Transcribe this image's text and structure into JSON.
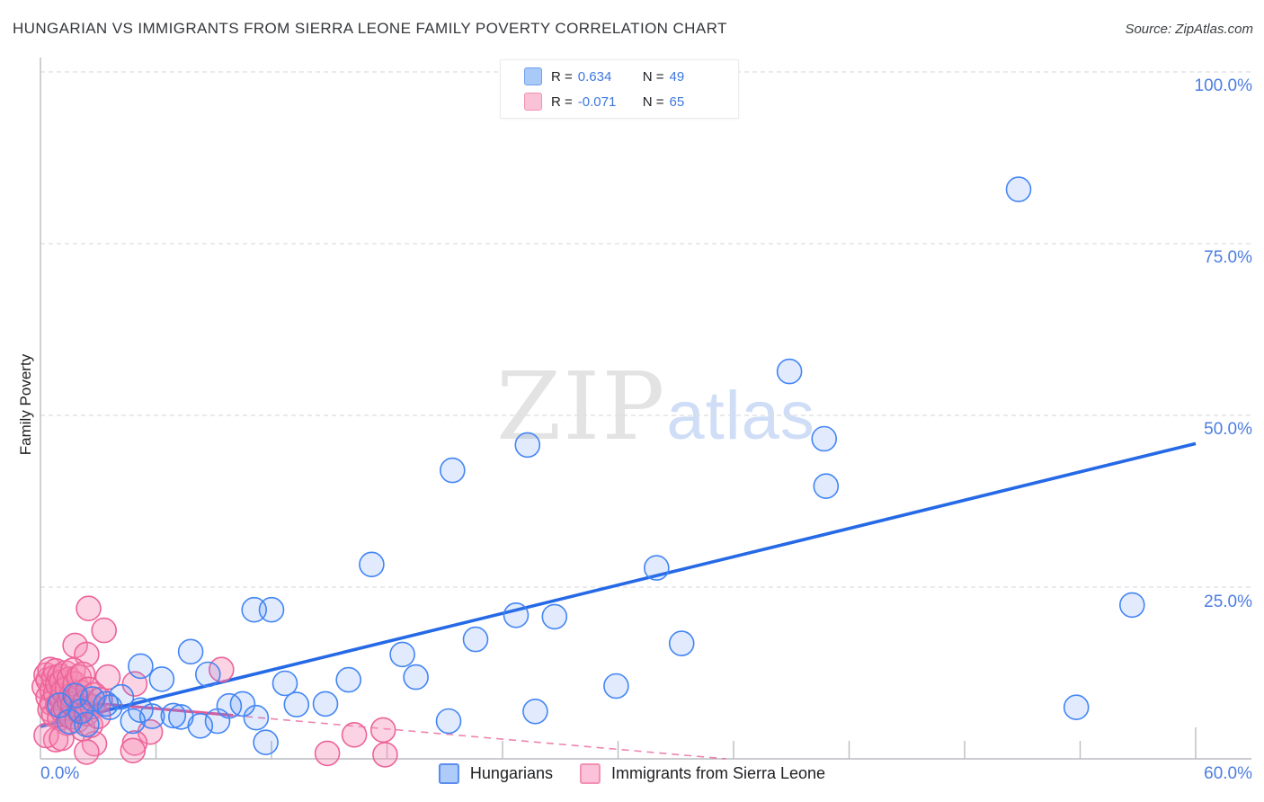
{
  "header": {
    "title": "HUNGARIAN VS IMMIGRANTS FROM SIERRA LEONE FAMILY POVERTY CORRELATION CHART",
    "source": "Source: ZipAtlas.com"
  },
  "stats_box": {
    "rows": [
      {
        "series": "Hungarians",
        "r_label": "R =",
        "r_value": "0.634",
        "n_label": "N =",
        "n_value": "49"
      },
      {
        "series": "Immigrants from Sierra Leone",
        "r_label": "R =",
        "r_value": "-0.071",
        "n_label": "N =",
        "n_value": "65"
      }
    ]
  },
  "watermark": {
    "zip": "ZIP",
    "atlas": "atlas"
  },
  "y_axis": {
    "title": "Family Poverty",
    "tick_labels": [
      "100.0%",
      "75.0%",
      "50.0%",
      "25.0%"
    ]
  },
  "x_axis": {
    "min_label": "0.0%",
    "max_label": "60.0%"
  },
  "bottom_legend": [
    {
      "label": "Hungarians"
    },
    {
      "label": "Immigrants from Sierra Leone"
    }
  ],
  "colors": {
    "blue_marker_stroke": "#4285f4",
    "blue_marker_fill": "rgba(66,133,244,0.16)",
    "pink_marker_stroke": "#ec6399",
    "pink_marker_fill": "rgba(246,140,180,0.38)",
    "blue_trend": "#2569e6",
    "pink_trend": "#e75b95",
    "grid": "#dcdee1",
    "axis": "#b9bcc0",
    "tick_text": "#4c7de2"
  },
  "chart_data": {
    "type": "scatter",
    "title": "HUNGARIAN VS IMMIGRANTS FROM SIERRA LEONE FAMILY POVERTY CORRELATION CHART",
    "xlabel": "",
    "ylabel": "Family Poverty",
    "xlim": [
      0,
      60
    ],
    "ylim": [
      0,
      100
    ],
    "x_tick_step": 6,
    "gridlines_y": [
      25,
      50,
      75,
      100
    ],
    "grid_style": "dashed horizontal",
    "legend_position": "bottom-center",
    "series": [
      {
        "name": "Immigrants from Sierra Leone",
        "R": -0.071,
        "N": 65,
        "trend": {
          "x": [
            0,
            35.6
          ],
          "y": [
            8.8,
            0.0
          ],
          "solid_until_x": 10
        },
        "points": [
          [
            2.5,
            21.9
          ],
          [
            3.3,
            18.7
          ],
          [
            1.8,
            16.5
          ],
          [
            2.4,
            15.2
          ],
          [
            3.5,
            11.9
          ],
          [
            4.9,
            10.9
          ],
          [
            9.4,
            13.0
          ],
          [
            5.7,
            3.9
          ],
          [
            4.9,
            2.3
          ],
          [
            2.8,
            2.2
          ],
          [
            2.4,
            1.0
          ],
          [
            4.8,
            1.2
          ],
          [
            14.9,
            0.8
          ],
          [
            16.3,
            3.5
          ],
          [
            17.8,
            4.2
          ],
          [
            17.9,
            0.6
          ],
          [
            0.8,
            2.8
          ],
          [
            0.2,
            10.5
          ],
          [
            0.3,
            12.2
          ],
          [
            0.4,
            9.0
          ],
          [
            0.4,
            11.5
          ],
          [
            0.5,
            7.2
          ],
          [
            0.5,
            13.0
          ],
          [
            0.6,
            10.0
          ],
          [
            0.6,
            8.1
          ],
          [
            0.7,
            11.8
          ],
          [
            0.7,
            6.4
          ],
          [
            0.8,
            9.5
          ],
          [
            0.8,
            12.8
          ],
          [
            0.9,
            7.8
          ],
          [
            0.9,
            10.8
          ],
          [
            1.0,
            5.9
          ],
          [
            1.0,
            12.0
          ],
          [
            1.1,
            8.8
          ],
          [
            1.1,
            11.2
          ],
          [
            1.2,
            6.8
          ],
          [
            1.2,
            9.9
          ],
          [
            1.3,
            12.5
          ],
          [
            1.3,
            7.4
          ],
          [
            1.4,
            10.3
          ],
          [
            1.4,
            5.2
          ],
          [
            1.5,
            8.4
          ],
          [
            1.5,
            11.6
          ],
          [
            1.6,
            6.1
          ],
          [
            1.6,
            9.2
          ],
          [
            1.7,
            12.9
          ],
          [
            1.7,
            7.9
          ],
          [
            1.8,
            10.9
          ],
          [
            1.9,
            5.6
          ],
          [
            1.9,
            8.9
          ],
          [
            2.0,
            11.9
          ],
          [
            2.0,
            7.0
          ],
          [
            2.1,
            9.7
          ],
          [
            2.2,
            4.4
          ],
          [
            2.2,
            12.3
          ],
          [
            2.3,
            8.2
          ],
          [
            2.4,
            6.6
          ],
          [
            2.5,
            10.1
          ],
          [
            2.6,
            4.9
          ],
          [
            2.7,
            7.6
          ],
          [
            2.8,
            9.3
          ],
          [
            3.0,
            6.2
          ],
          [
            3.1,
            8.6
          ],
          [
            0.3,
            3.4
          ],
          [
            1.1,
            3.0
          ]
        ]
      },
      {
        "name": "Hungarians",
        "R": 0.634,
        "N": 49,
        "trend": {
          "x": [
            0,
            60
          ],
          "y": [
            4.7,
            45.9
          ],
          "solid_until_x": 60
        },
        "points": [
          [
            1.0,
            7.8
          ],
          [
            1.5,
            5.4
          ],
          [
            1.8,
            9.2
          ],
          [
            2.1,
            6.9
          ],
          [
            2.4,
            5.0
          ],
          [
            2.7,
            8.7
          ],
          [
            3.4,
            8.0
          ],
          [
            3.6,
            7.5
          ],
          [
            4.2,
            9.0
          ],
          [
            4.8,
            5.5
          ],
          [
            5.2,
            13.5
          ],
          [
            5.2,
            7.1
          ],
          [
            5.8,
            6.2
          ],
          [
            6.3,
            11.6
          ],
          [
            6.9,
            6.3
          ],
          [
            7.3,
            6.1
          ],
          [
            7.8,
            15.6
          ],
          [
            8.3,
            4.8
          ],
          [
            8.7,
            12.3
          ],
          [
            9.2,
            5.5
          ],
          [
            9.8,
            7.7
          ],
          [
            10.5,
            8.0
          ],
          [
            11.1,
            21.7
          ],
          [
            11.2,
            6.0
          ],
          [
            11.7,
            2.4
          ],
          [
            12.0,
            21.7
          ],
          [
            12.7,
            11.0
          ],
          [
            13.3,
            7.9
          ],
          [
            14.8,
            8.0
          ],
          [
            16.0,
            11.5
          ],
          [
            17.2,
            28.3
          ],
          [
            18.8,
            15.2
          ],
          [
            19.5,
            11.9
          ],
          [
            21.2,
            5.5
          ],
          [
            21.4,
            42.0
          ],
          [
            22.6,
            17.4
          ],
          [
            24.7,
            20.9
          ],
          [
            25.3,
            45.7
          ],
          [
            25.7,
            6.9
          ],
          [
            26.7,
            20.7
          ],
          [
            29.9,
            10.6
          ],
          [
            32.0,
            27.8
          ],
          [
            33.3,
            16.8
          ],
          [
            38.9,
            56.4
          ],
          [
            40.7,
            46.6
          ],
          [
            40.8,
            39.7
          ],
          [
            50.8,
            82.9
          ],
          [
            53.8,
            7.5
          ],
          [
            56.7,
            22.4
          ]
        ]
      }
    ]
  }
}
